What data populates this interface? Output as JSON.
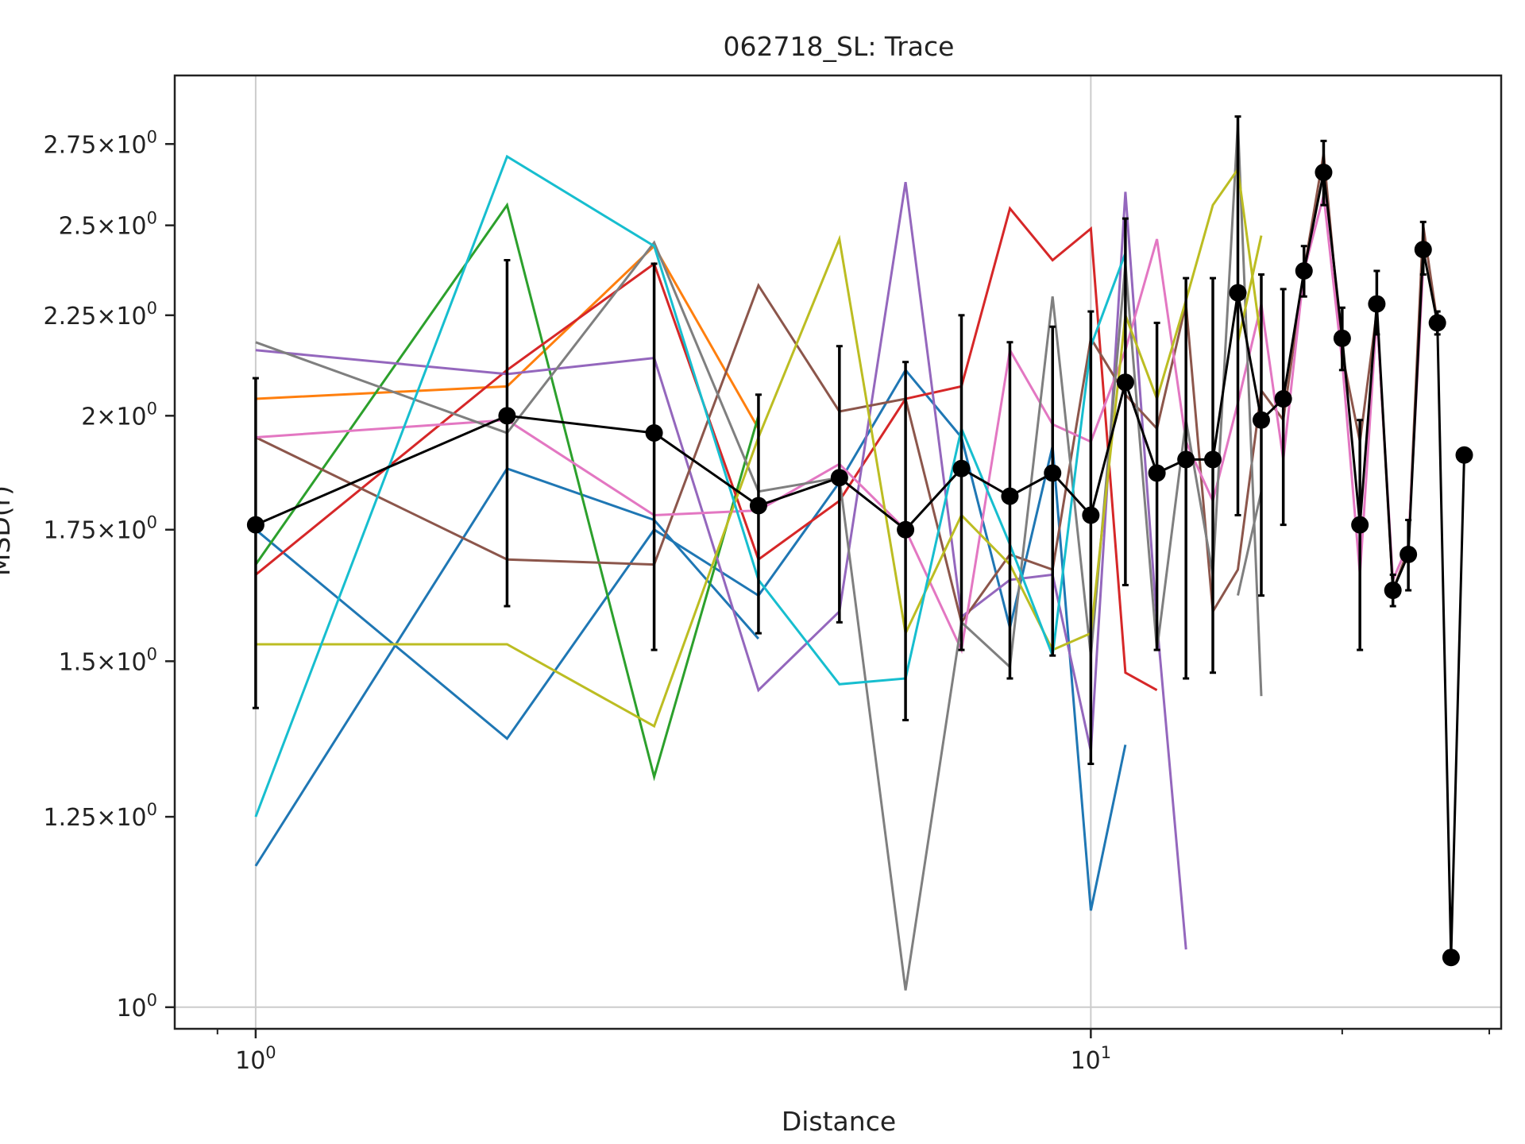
{
  "chart_data": {
    "type": "line",
    "title": "062718_SL: Trace",
    "xlabel": "Distance",
    "ylabel": "MSD(r)",
    "x_scale": "log",
    "y_scale": "log",
    "xlim": [
      0.8,
      31
    ],
    "ylim": [
      0.975,
      2.98
    ],
    "grid": "major",
    "x_major_ticks": [
      1,
      10
    ],
    "x_major_labels": [
      "10^0",
      "10^1"
    ],
    "x_minor_ticks": [
      0.9,
      20,
      30
    ],
    "y_ticks": [
      1.0,
      1.25,
      1.5,
      1.75,
      2.0,
      2.25,
      2.5,
      2.75
    ],
    "y_tick_labels": [
      "10^0",
      "1.25×10^0",
      "1.5×10^0",
      "1.75×10^0",
      "2×10^0",
      "2.25×10^0",
      "2.5×10^0",
      "2.75×10^0"
    ],
    "series": [
      {
        "color": "#1f77b4",
        "x": [
          1,
          2,
          3,
          4
        ],
        "y": [
          1.18,
          1.88,
          1.77,
          1.54
        ]
      },
      {
        "color": "#1f77b4",
        "x": [
          1,
          2,
          3,
          4,
          5,
          6,
          7,
          8,
          9,
          10,
          11
        ],
        "y": [
          1.75,
          1.37,
          1.75,
          1.62,
          1.85,
          2.11,
          1.95,
          1.56,
          1.93,
          1.12,
          1.36
        ]
      },
      {
        "color": "#ff7f0e",
        "x": [
          1,
          2,
          3,
          4
        ],
        "y": [
          2.04,
          2.07,
          2.44,
          1.97
        ]
      },
      {
        "color": "#2ca02c",
        "x": [
          1,
          2,
          3,
          4
        ],
        "y": [
          1.68,
          2.56,
          1.31,
          2.0
        ]
      },
      {
        "color": "#d62728",
        "x": [
          1,
          2,
          3,
          4,
          5,
          6,
          7,
          8,
          9,
          10,
          11,
          12
        ],
        "y": [
          1.66,
          2.11,
          2.39,
          1.69,
          1.81,
          2.04,
          2.07,
          2.55,
          2.4,
          2.49,
          1.48,
          1.45
        ]
      },
      {
        "color": "#9467bd",
        "x": [
          1,
          2,
          3,
          4,
          5,
          6,
          7,
          8,
          9,
          10,
          11,
          12,
          13
        ],
        "y": [
          2.16,
          2.1,
          2.14,
          1.45,
          1.59,
          2.63,
          1.58,
          1.65,
          1.66,
          1.35,
          2.6,
          1.57,
          1.07
        ]
      },
      {
        "color": "#8c564b",
        "x": [
          1,
          2,
          3,
          4,
          5,
          6,
          7,
          8,
          9,
          10,
          11,
          12,
          13,
          14,
          15,
          16,
          17,
          18,
          19,
          20,
          21,
          22,
          23,
          24,
          25,
          26
        ],
        "y": [
          1.95,
          1.69,
          1.68,
          2.33,
          2.01,
          2.04,
          1.57,
          1.7,
          1.67,
          2.19,
          2.05,
          1.97,
          2.28,
          1.59,
          1.67,
          2.06,
          1.99,
          2.37,
          2.72,
          2.15,
          1.94,
          2.26,
          1.63,
          1.71,
          2.5,
          2.23
        ]
      },
      {
        "color": "#e377c2",
        "x": [
          1,
          2,
          3,
          4,
          5,
          6,
          7,
          8,
          9,
          10,
          11,
          12,
          13,
          14,
          15,
          16,
          17,
          18,
          19,
          20,
          21,
          22,
          23,
          24,
          25
        ],
        "y": [
          1.95,
          1.99,
          1.78,
          1.79,
          1.89,
          1.75,
          1.52,
          2.16,
          1.98,
          1.94,
          2.16,
          2.46,
          1.94,
          1.81,
          2.03,
          2.28,
          1.9,
          2.37,
          2.59,
          2.13,
          1.66,
          2.25,
          1.65,
          1.72,
          2.38
        ]
      },
      {
        "color": "#7f7f7f",
        "x": [
          1,
          2,
          3,
          4,
          5,
          6,
          7,
          8,
          9,
          10,
          11,
          12,
          13,
          14,
          15,
          16
        ],
        "y": [
          2.18,
          1.96,
          2.45,
          1.83,
          1.86,
          1.02,
          1.57,
          1.49,
          2.3,
          1.51,
          2.39,
          1.52,
          1.99,
          1.66,
          2.82,
          1.44
        ]
      },
      {
        "color": "#7f7f7f",
        "x": [
          15,
          16
        ],
        "y": [
          1.62,
          1.83
        ]
      },
      {
        "color": "#bcbd22",
        "x": [
          1,
          2,
          3,
          4,
          5,
          6,
          7,
          8,
          9,
          10,
          11,
          12,
          13,
          14,
          15,
          16
        ],
        "y": [
          1.53,
          1.53,
          1.39,
          1.95,
          2.46,
          1.55,
          1.78,
          1.68,
          1.52,
          1.55,
          2.25,
          2.04,
          2.29,
          2.56,
          2.67,
          2.18
        ]
      },
      {
        "color": "#bcbd22",
        "x": [
          15,
          16
        ],
        "y": [
          2.18,
          2.47
        ]
      },
      {
        "color": "#17becf",
        "x": [
          1,
          2,
          3,
          4,
          5,
          6,
          7,
          8,
          9,
          10,
          11
        ],
        "y": [
          1.25,
          2.71,
          2.44,
          1.65,
          1.46,
          1.47,
          1.97,
          1.72,
          1.51,
          2.17,
          2.42
        ]
      },
      {
        "color": "#000000",
        "x": [
          1,
          2,
          3,
          4,
          5,
          6,
          7,
          8,
          9,
          10,
          11,
          12,
          13,
          14,
          15,
          16,
          17,
          18,
          19,
          20,
          21,
          22,
          23,
          24,
          25,
          26,
          27,
          28
        ],
        "y": [
          1.76,
          2.0,
          1.96,
          1.8,
          1.86,
          1.75,
          1.88,
          1.82,
          1.87,
          1.78,
          2.08,
          1.87,
          1.9,
          1.9,
          2.31,
          1.99,
          2.04,
          2.37,
          2.66,
          2.19,
          1.76,
          2.28,
          1.63,
          1.7,
          2.43,
          2.23,
          1.06,
          1.91
        ],
        "yerr_low": [
          1.42,
          1.6,
          1.52,
          1.55,
          1.57,
          1.4,
          1.52,
          1.47,
          1.51,
          1.33,
          1.64,
          1.52,
          1.47,
          1.48,
          1.78,
          1.62,
          1.76,
          2.3,
          2.56,
          2.11,
          1.52,
          2.2,
          1.6,
          1.63,
          2.36,
          2.2,
          1.06,
          1.91
        ],
        "yerr_high": [
          2.09,
          2.4,
          2.39,
          2.05,
          2.17,
          2.13,
          2.25,
          2.18,
          2.22,
          2.26,
          2.52,
          2.23,
          2.35,
          2.35,
          2.84,
          2.36,
          2.32,
          2.44,
          2.76,
          2.27,
          1.99,
          2.37,
          1.66,
          1.77,
          2.51,
          2.26,
          1.06,
          1.91
        ]
      }
    ]
  }
}
